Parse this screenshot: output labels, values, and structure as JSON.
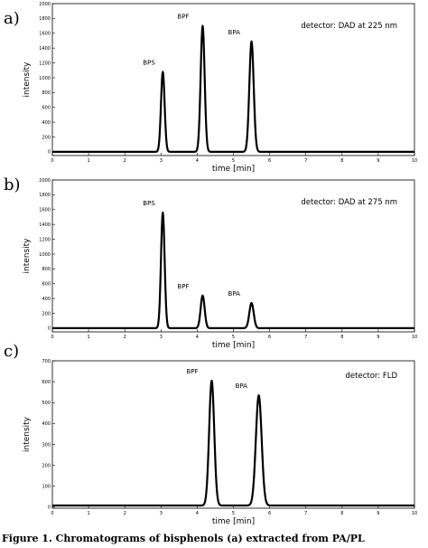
{
  "chart_data": [
    {
      "type": "line",
      "panel_label": "a)",
      "annotation": "detector: DAD at 225 nm",
      "xlabel": "time [min]",
      "ylabel": "intensity",
      "xlim": [
        0,
        10
      ],
      "ylim": [
        -50,
        2000
      ],
      "xticks": [
        0,
        1,
        2,
        3,
        4,
        5,
        6,
        7,
        8,
        9,
        10
      ],
      "yticks": [
        0,
        200,
        400,
        600,
        800,
        1000,
        1200,
        1400,
        1600,
        1800,
        2000
      ],
      "baseline": 0,
      "series": [
        {
          "peaks": [
            {
              "name": "BPS",
              "x": 3.05,
              "y": 1080,
              "width": 0.05
            },
            {
              "name": "BPF",
              "x": 4.15,
              "y": 1700,
              "width": 0.055
            },
            {
              "name": "BPA",
              "x": 5.5,
              "y": 1490,
              "width": 0.06
            }
          ]
        }
      ],
      "grid": false,
      "legend": "none"
    },
    {
      "type": "line",
      "panel_label": "b)",
      "annotation": "detector: DAD at 275 nm",
      "xlabel": "time [min]",
      "ylabel": "intensity",
      "xlim": [
        0,
        10
      ],
      "ylim": [
        -50,
        2000
      ],
      "xticks": [
        0,
        1,
        2,
        3,
        4,
        5,
        6,
        7,
        8,
        9,
        10
      ],
      "yticks": [
        0,
        200,
        400,
        600,
        800,
        1000,
        1200,
        1400,
        1600,
        1800,
        2000
      ],
      "baseline": 0,
      "series": [
        {
          "peaks": [
            {
              "name": "BPS",
              "x": 3.05,
              "y": 1560,
              "width": 0.05
            },
            {
              "name": "BPF",
              "x": 4.15,
              "y": 440,
              "width": 0.055
            },
            {
              "name": "BPA",
              "x": 5.5,
              "y": 340,
              "width": 0.06
            }
          ]
        }
      ],
      "grid": false,
      "legend": "none"
    },
    {
      "type": "line",
      "panel_label": "c)",
      "annotation": "detector: FLD",
      "xlabel": "time [min]",
      "ylabel": "intensity",
      "xlim": [
        0,
        10
      ],
      "ylim": [
        -5,
        700
      ],
      "xticks": [
        0,
        1,
        2,
        3,
        4,
        5,
        6,
        7,
        8,
        9,
        10
      ],
      "yticks": [
        0,
        100,
        200,
        300,
        400,
        500,
        600,
        700
      ],
      "baseline": 8,
      "series": [
        {
          "peaks": [
            {
              "name": "BPF",
              "x": 4.4,
              "y": 605,
              "width": 0.07
            },
            {
              "name": "BPA",
              "x": 5.7,
              "y": 535,
              "width": 0.08
            }
          ]
        }
      ],
      "grid": false,
      "legend": "none"
    }
  ],
  "caption": "Figure 1. Chromatograms of bisphenols (a) extracted from PA/PL"
}
